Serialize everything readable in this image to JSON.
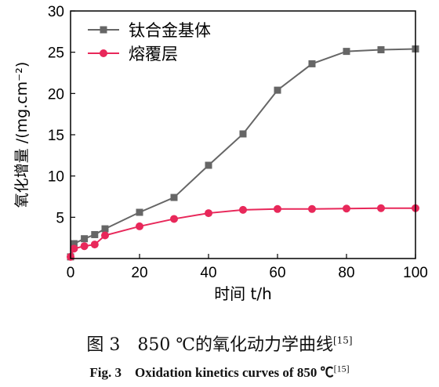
{
  "chart_data": {
    "type": "line",
    "xlabel": "时间 t/h",
    "ylabel": "氧化增量 /(mg.cm⁻²)",
    "xlim": [
      0,
      100
    ],
    "ylim": [
      0,
      30
    ],
    "x_ticks": [
      0,
      20,
      40,
      60,
      80,
      100
    ],
    "y_ticks": [
      5,
      10,
      15,
      20,
      25,
      30
    ],
    "legend_position": "top-left",
    "series": [
      {
        "name": "钛合金基体",
        "color": "#666666",
        "marker": "square",
        "x": [
          0,
          1,
          4,
          7,
          10,
          20,
          30,
          40,
          50,
          60,
          70,
          80,
          90,
          100
        ],
        "y": [
          0.2,
          1.8,
          2.4,
          2.9,
          3.6,
          5.6,
          7.4,
          11.3,
          15.1,
          20.4,
          23.6,
          25.1,
          25.3,
          25.4
        ]
      },
      {
        "name": "熔覆层",
        "color": "#e8285a",
        "marker": "circle",
        "x": [
          0,
          1,
          4,
          7,
          10,
          20,
          30,
          40,
          50,
          60,
          70,
          80,
          90,
          100
        ],
        "y": [
          0.2,
          1.2,
          1.5,
          1.7,
          2.8,
          3.9,
          4.8,
          5.5,
          5.9,
          6.0,
          6.0,
          6.05,
          6.1,
          6.1
        ]
      }
    ]
  },
  "caption": {
    "cn_main": "图 3　850 ℃的氧化动力学曲线",
    "cn_ref": "[15]",
    "en_main": "Fig. 3　Oxidation kinetics curves of 850 ℃",
    "en_ref": "[15]"
  }
}
